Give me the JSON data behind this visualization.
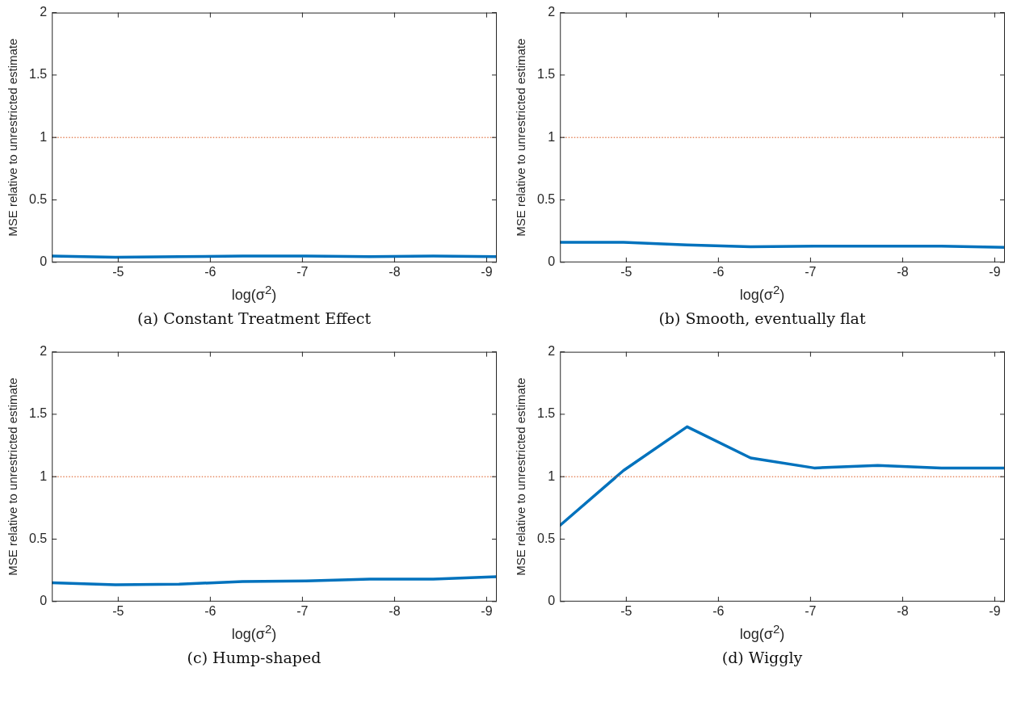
{
  "chart_data": [
    {
      "type": "line",
      "x": [
        -4.28,
        -4.97,
        -5.66,
        -6.35,
        -7.04,
        -7.73,
        -8.42,
        -9.11
      ],
      "xlim": [
        -4.28,
        -9.11
      ],
      "xticks": [
        -5,
        -6,
        -7,
        -8,
        -9
      ],
      "ylim": [
        0,
        2
      ],
      "yticks": [
        0,
        0.5,
        1,
        1.5,
        2
      ],
      "xlabel": "log(σ$^{2}$)",
      "ylabel": "MSE relative to unrestricted estimate",
      "marker": "none",
      "line_style": "solid",
      "series": [
        {
          "color": "#0072bd",
          "values": [
            0.05,
            0.04,
            0.045,
            0.05,
            0.05,
            0.045,
            0.05,
            0.045
          ]
        }
      ],
      "ref_lines": [
        {
          "axis": "y",
          "value": 1,
          "color": "#d95319",
          "line_style": "dotted"
        }
      ],
      "annotations": [
        "(a) Constant Treatment Effect"
      ]
    },
    {
      "type": "line",
      "x": [
        -4.28,
        -4.97,
        -5.66,
        -6.35,
        -7.04,
        -7.73,
        -8.42,
        -9.11
      ],
      "xlim": [
        -4.28,
        -9.11
      ],
      "xticks": [
        -5,
        -6,
        -7,
        -8,
        -9
      ],
      "ylim": [
        0,
        2
      ],
      "yticks": [
        0,
        0.5,
        1,
        1.5,
        2
      ],
      "xlabel": "log(σ$^{2}$)",
      "ylabel": "MSE relative to unrestricted estimate",
      "marker": "none",
      "line_style": "solid",
      "series": [
        {
          "color": "#0072bd",
          "values": [
            0.16,
            0.16,
            0.14,
            0.125,
            0.13,
            0.13,
            0.13,
            0.12
          ]
        }
      ],
      "ref_lines": [
        {
          "axis": "y",
          "value": 1,
          "color": "#d95319",
          "line_style": "dotted"
        }
      ],
      "annotations": [
        "(b) Smooth, eventually flat"
      ]
    },
    {
      "type": "line",
      "x": [
        -4.28,
        -4.97,
        -5.66,
        -6.35,
        -7.04,
        -7.73,
        -8.42,
        -9.11
      ],
      "xlim": [
        -4.28,
        -9.11
      ],
      "xticks": [
        -5,
        -6,
        -7,
        -8,
        -9
      ],
      "ylim": [
        0,
        2
      ],
      "yticks": [
        0,
        0.5,
        1,
        1.5,
        2
      ],
      "xlabel": "log(σ$^{2}$)",
      "ylabel": "MSE relative to unrestricted estimate",
      "marker": "none",
      "line_style": "solid",
      "series": [
        {
          "color": "#0072bd",
          "values": [
            0.15,
            0.135,
            0.14,
            0.16,
            0.165,
            0.18,
            0.18,
            0.2
          ]
        }
      ],
      "ref_lines": [
        {
          "axis": "y",
          "value": 1,
          "color": "#d95319",
          "line_style": "dotted"
        }
      ],
      "annotations": [
        "(c) Hump-shaped"
      ]
    },
    {
      "type": "line",
      "x": [
        -4.28,
        -4.97,
        -5.66,
        -6.35,
        -7.04,
        -7.73,
        -8.42,
        -9.11
      ],
      "xlim": [
        -4.28,
        -9.11
      ],
      "xticks": [
        -5,
        -6,
        -7,
        -8,
        -9
      ],
      "ylim": [
        0,
        2
      ],
      "yticks": [
        0,
        0.5,
        1,
        1.5,
        2
      ],
      "xlabel": "log(σ$^{2}$)",
      "ylabel": "MSE relative to unrestricted estimate",
      "marker": "none",
      "line_style": "solid",
      "series": [
        {
          "color": "#0072bd",
          "values": [
            0.61,
            1.05,
            1.4,
            1.15,
            1.07,
            1.09,
            1.07,
            1.07
          ]
        }
      ],
      "ref_lines": [
        {
          "axis": "y",
          "value": 1,
          "color": "#d95319",
          "line_style": "dotted"
        }
      ],
      "annotations": [
        "(d) Wiggly"
      ]
    }
  ]
}
